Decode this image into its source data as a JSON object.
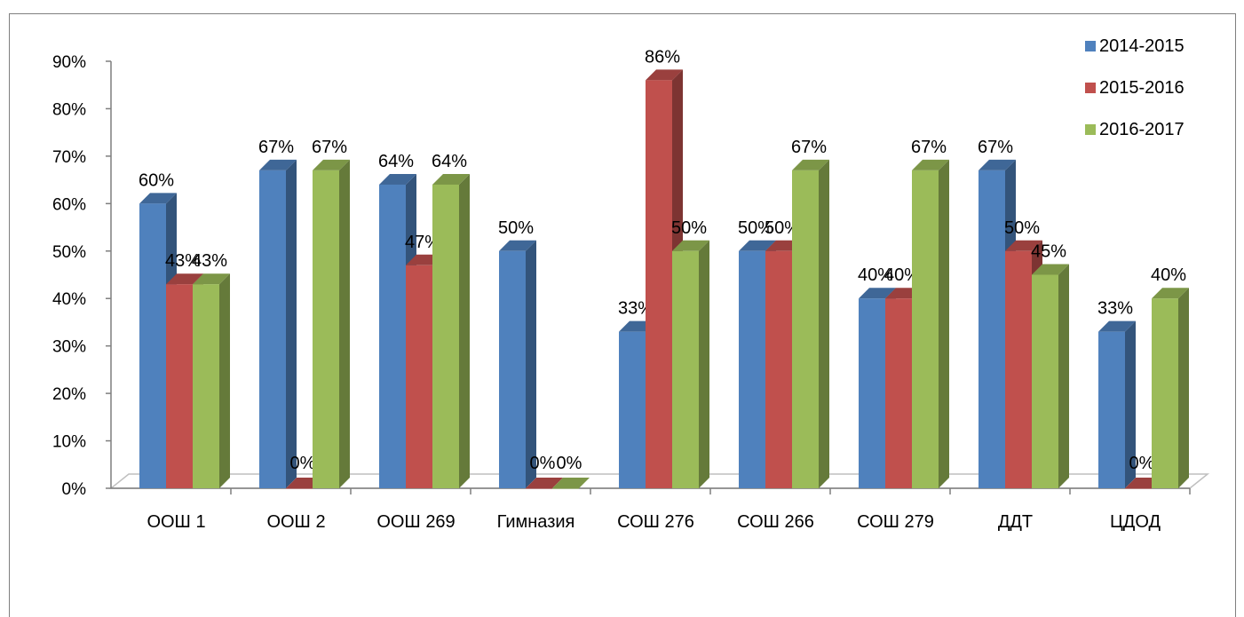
{
  "header_text": "",
  "colors": {
    "2014-2015": "#4f81bd",
    "2015-2016": "#c0504d",
    "2016-2017": "#9bbb59"
  },
  "chart_data": {
    "type": "bar",
    "title": "",
    "xlabel": "",
    "ylabel": "",
    "ylim": [
      0,
      90
    ],
    "yticks": [
      "0%",
      "10%",
      "20%",
      "30%",
      "40%",
      "50%",
      "60%",
      "70%",
      "80%",
      "90%"
    ],
    "grid": false,
    "legend_position": "top-right",
    "categories": [
      "ООШ 1",
      "ООШ 2",
      "ООШ 269",
      "Гимназия",
      "СОШ 276",
      "СОШ 266",
      "СОШ 279",
      "ДДТ",
      "ЦДОД"
    ],
    "series": [
      {
        "name": "2014-2015",
        "values": [
          60,
          67,
          64,
          50,
          33,
          50,
          40,
          67,
          33
        ],
        "labels": [
          "60%",
          "67%",
          "64%",
          "50%",
          "33%",
          "50%",
          "40%",
          "67%",
          "33%"
        ]
      },
      {
        "name": "2015-2016",
        "values": [
          43,
          0,
          47,
          0,
          86,
          50,
          40,
          50,
          0
        ],
        "labels": [
          "43%",
          "0%",
          "47%",
          "0%",
          "86%",
          "50%",
          "40%",
          "50%",
          "0%"
        ]
      },
      {
        "name": "2016-2017",
        "values": [
          43,
          67,
          64,
          0,
          50,
          67,
          67,
          45,
          40
        ],
        "labels": [
          "43%",
          "67%",
          "64%",
          "0%",
          "50%",
          "67%",
          "67%",
          "45%",
          "40%"
        ]
      }
    ]
  }
}
